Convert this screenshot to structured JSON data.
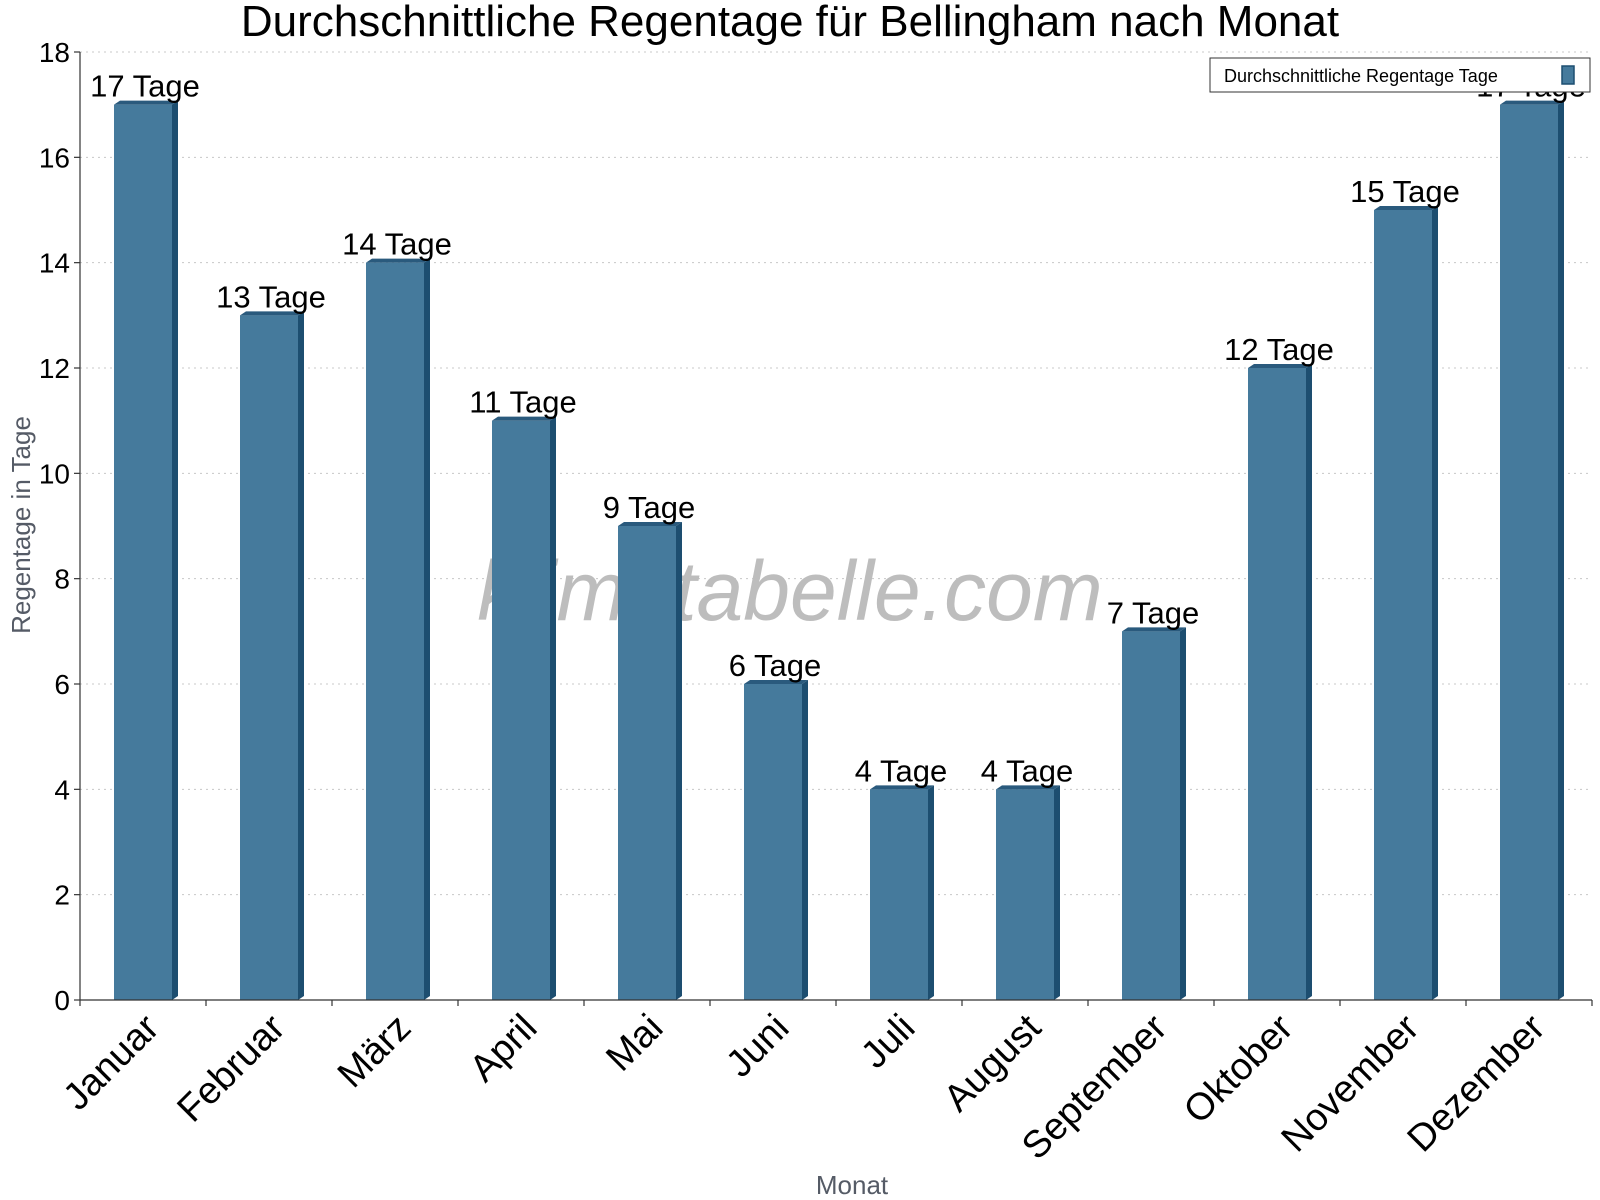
{
  "watermark": "klimatabelle.com",
  "chart_data": {
    "type": "bar",
    "title": "Durchschnittliche Regentage für Bellingham nach Monat",
    "xlabel": "Monat",
    "ylabel": "Regentage in Tage",
    "ylim": [
      0,
      18
    ],
    "yticks": [
      0,
      2,
      4,
      6,
      8,
      10,
      12,
      14,
      16,
      18
    ],
    "grid": true,
    "legend_position": "top-right",
    "categories": [
      "Januar",
      "Februar",
      "März",
      "April",
      "Mai",
      "Juni",
      "Juli",
      "August",
      "September",
      "Oktober",
      "November",
      "Dezember"
    ],
    "series": [
      {
        "name": "Durchschnittliche Regentage Tage",
        "values": [
          17,
          13,
          14,
          11,
          9,
          6,
          4,
          4,
          7,
          12,
          15,
          17
        ],
        "labels": [
          "17 Tage",
          "13 Tage",
          "14 Tage",
          "11 Tage",
          "9 Tage",
          "6 Tage",
          "4 Tage",
          "4 Tage",
          "7 Tage",
          "12 Tage",
          "15 Tage",
          "17 Tage"
        ],
        "color": "#457a9c",
        "side_color": "#1d4e70",
        "top_color": "#2a5a7d"
      }
    ]
  }
}
